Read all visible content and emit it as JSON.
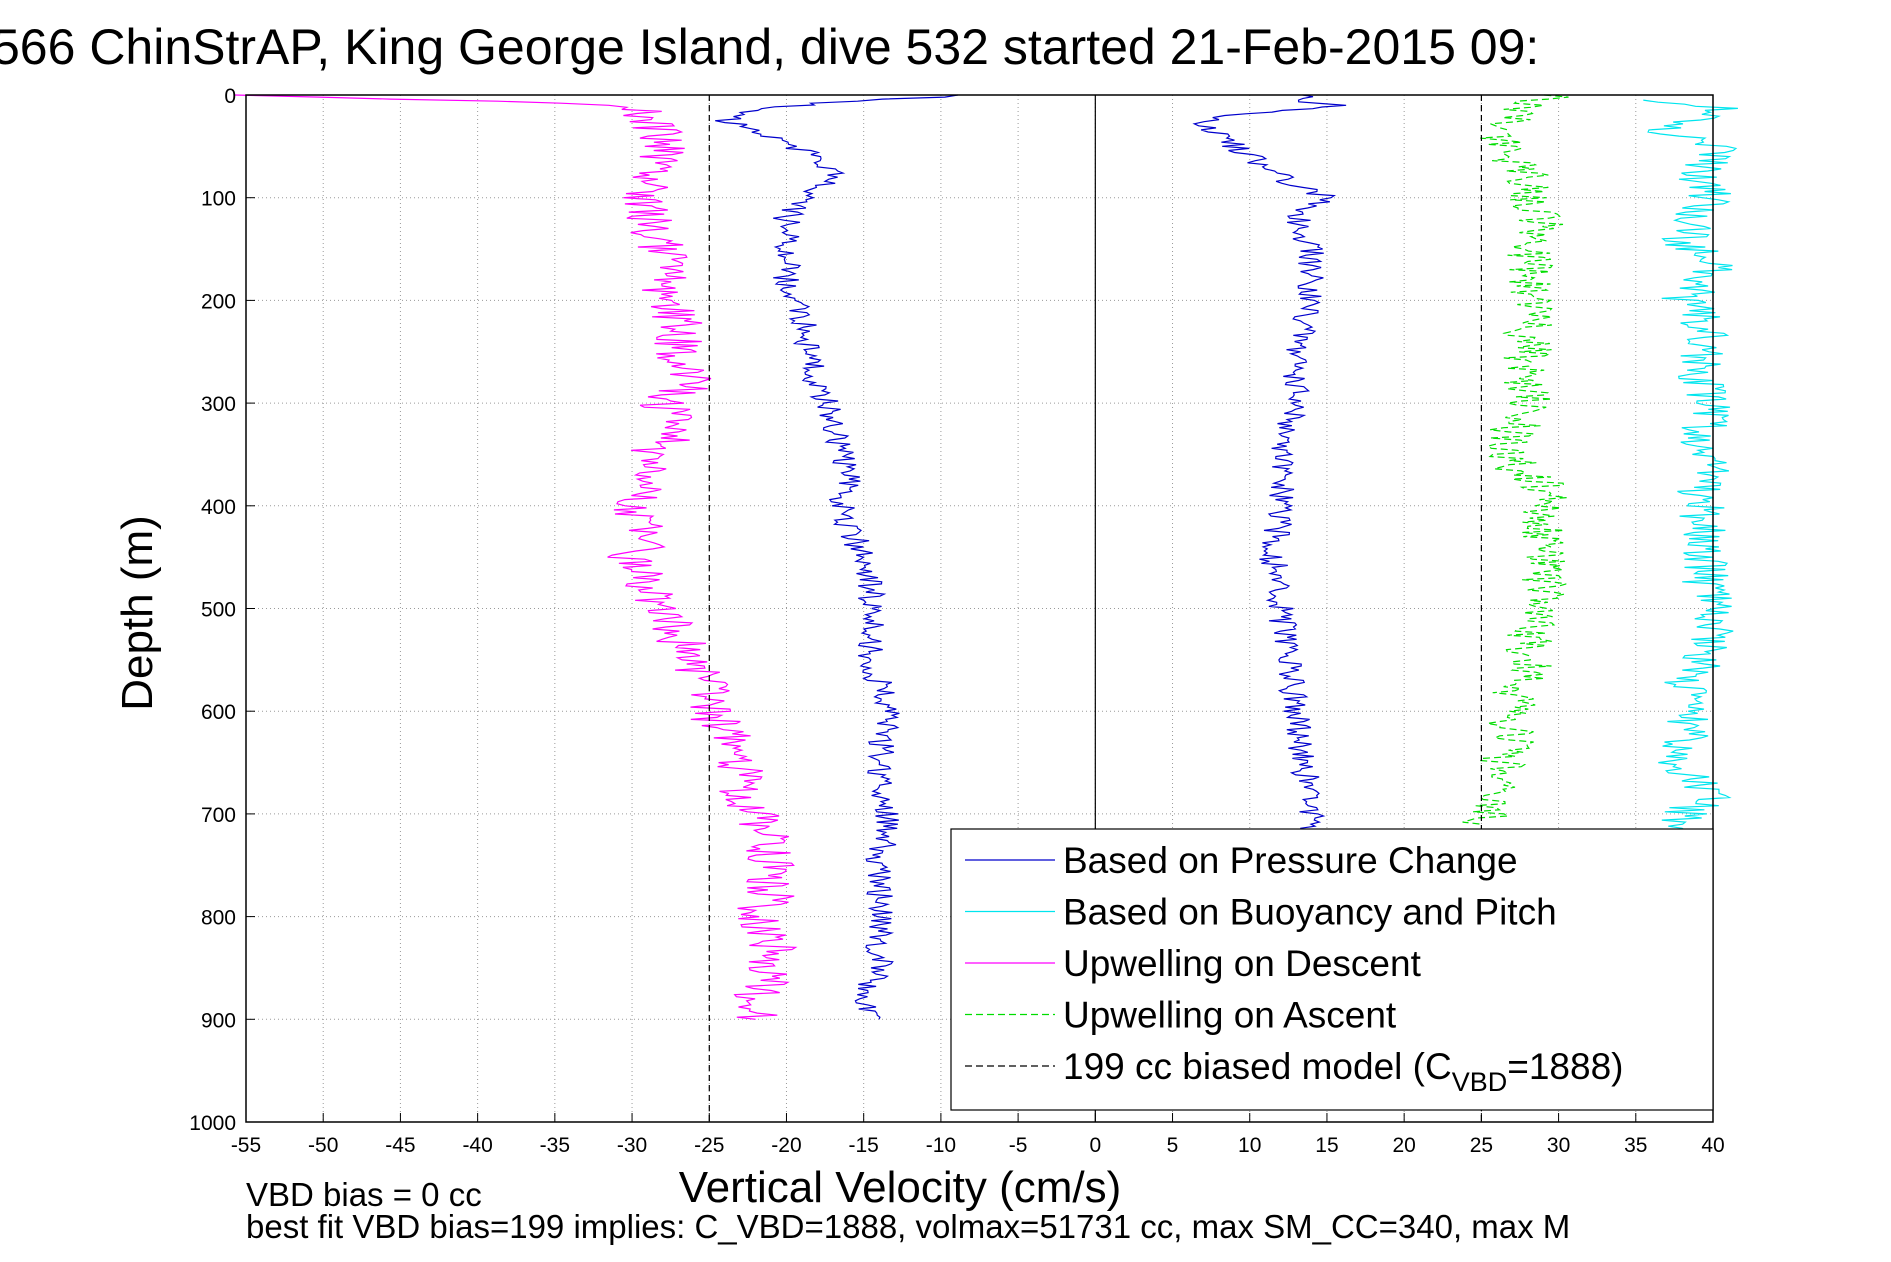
{
  "chart_data": {
    "type": "line",
    "title": "566 ChinStrAP, King George Island, dive 532 started 21-Feb-2015 09:",
    "xlabel": "Vertical Velocity (cm/s)",
    "ylabel": "Depth (m)",
    "xlim": [
      -55,
      40
    ],
    "ylim": [
      0,
      1000
    ],
    "y_reversed": true,
    "grid": true,
    "xticks": [
      "-55",
      "-50",
      "-45",
      "-40",
      "-35",
      "-30",
      "-25",
      "-20",
      "-15",
      "-10",
      "-5",
      "0",
      "5",
      "10",
      "15",
      "20",
      "25",
      "30",
      "35",
      "40"
    ],
    "yticks": [
      "0",
      "100",
      "200",
      "300",
      "400",
      "500",
      "600",
      "700",
      "800",
      "900",
      "1000"
    ],
    "legend_position": "bottom-right",
    "legend": [
      {
        "label": "Based on Pressure Change",
        "color": "#0000cc",
        "style": "solid"
      },
      {
        "label": "Based on Buoyancy and Pitch",
        "color": "#00e5ee",
        "style": "solid"
      },
      {
        "label": "Upwelling on Descent",
        "color": "#ff00ff",
        "style": "solid"
      },
      {
        "label": "Upwelling on Ascent",
        "color": "#00dd00",
        "style": "dashed"
      },
      {
        "label": "199 cc biased model (C",
        "sub": "VBD",
        "suffix": "=1888)",
        "color": "#000000",
        "style": "dashed"
      }
    ],
    "series": [
      {
        "key": "pressure_descent",
        "color": "#0000cc",
        "depth": [
          0,
          8,
          15,
          25,
          40,
          60,
          80,
          100,
          120,
          150,
          180,
          200,
          220,
          250,
          280,
          300,
          320,
          350,
          380,
          400,
          420,
          450,
          480,
          500,
          550,
          600,
          650,
          700,
          750,
          800,
          850,
          880,
          900
        ],
        "values": [
          -8,
          -18,
          -22,
          -24,
          -21,
          -18,
          -17,
          -19,
          -20,
          -20,
          -20,
          -19.5,
          -19,
          -18.5,
          -18,
          -17.5,
          -17,
          -16.5,
          -16,
          -16.5,
          -16,
          -15,
          -14.5,
          -14.5,
          -14.5,
          -13.5,
          -14,
          -13.5,
          -14,
          -14,
          -14,
          -15,
          -14
        ]
      },
      {
        "key": "pressure_ascent",
        "color": "#0000cc",
        "depth": [
          0,
          5,
          10,
          15,
          20,
          30,
          40,
          60,
          80,
          100,
          120,
          150,
          200,
          250,
          300,
          350,
          400,
          450,
          500,
          550,
          600,
          650,
          700,
          730
        ],
        "values": [
          14,
          13,
          16,
          12,
          8,
          7,
          8,
          10,
          12,
          15,
          13,
          14,
          14,
          13,
          13,
          12,
          12,
          11.5,
          12,
          12.5,
          13,
          13.5,
          14,
          14
        ]
      },
      {
        "key": "buoyancy_pitch",
        "color": "#00e5ee",
        "depth": [
          5,
          15,
          30,
          50,
          80,
          100,
          110,
          140,
          170,
          200,
          230,
          260,
          300,
          350,
          360,
          380,
          540,
          560,
          580,
          600,
          620,
          650,
          680,
          700,
          720
        ],
        "values": [
          37,
          41,
          36,
          40,
          39,
          40,
          39,
          38,
          40,
          38,
          40,
          39,
          40,
          39,
          40,
          39,
          40,
          39,
          38,
          38,
          39,
          37,
          40,
          38,
          37
        ]
      },
      {
        "key": "upwelling_descent",
        "color": "#ff00ff",
        "depth": [
          0,
          10,
          20,
          40,
          60,
          80,
          100,
          120,
          150,
          180,
          200,
          220,
          250,
          280,
          300,
          330,
          350,
          380,
          400,
          430,
          450,
          480,
          500,
          530,
          550,
          580,
          600,
          620,
          650,
          680,
          700,
          730,
          750,
          780,
          800,
          830,
          850,
          880,
          900
        ],
        "values": [
          -55,
          -30,
          -29,
          -28,
          -28,
          -29,
          -29,
          -29,
          -28,
          -28,
          -28,
          -27,
          -27,
          -26,
          -28,
          -27,
          -29,
          -29,
          -30,
          -29,
          -30,
          -29,
          -28,
          -27,
          -26,
          -25,
          -25,
          -24,
          -23,
          -23,
          -22,
          -21,
          -21,
          -21,
          -22,
          -21,
          -21,
          -22,
          -22
        ]
      },
      {
        "key": "upwelling_ascent",
        "color": "#00dd00",
        "dashed": true,
        "depth": [
          0,
          10,
          20,
          40,
          60,
          80,
          100,
          120,
          150,
          180,
          200,
          230,
          260,
          300,
          330,
          360,
          380,
          400,
          430,
          460,
          500,
          530,
          560,
          580,
          600,
          630,
          660,
          690,
          710
        ],
        "values": [
          30,
          28,
          27,
          26,
          27,
          28,
          28,
          29,
          28,
          28,
          28,
          28,
          28,
          28,
          27,
          27,
          29,
          29,
          29,
          29,
          29,
          28,
          28,
          27,
          27,
          27,
          26,
          26,
          25
        ]
      },
      {
        "key": "biased_model",
        "color": "#000000",
        "dashed": true,
        "depth": [
          0,
          1000
        ],
        "values": [
          -25,
          -25
        ]
      },
      {
        "key": "biased_model_ascent",
        "color": "#000000",
        "dashed": true,
        "depth": [
          0,
          1000
        ],
        "values": [
          25,
          25
        ]
      }
    ],
    "footer": [
      "VBD bias = 0 cc",
      "best fit VBD bias=199 implies: C_VBD=1888, volmax=51731 cc, max SM_CC=340, max M"
    ]
  }
}
